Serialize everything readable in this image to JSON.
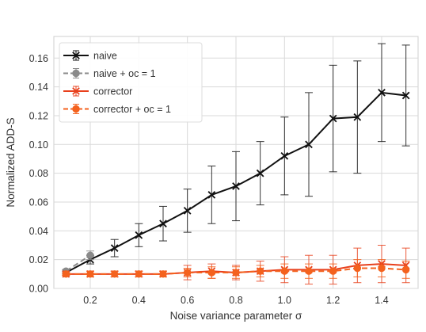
{
  "chart_data": {
    "type": "line",
    "title": "",
    "xlabel": "Noise variance parameter σ",
    "ylabel": "Normalized ADD-S",
    "xlim": [
      0.05,
      1.55
    ],
    "ylim": [
      0.0,
      0.175
    ],
    "x_ticks": [
      0.2,
      0.4,
      0.6,
      0.8,
      1.0,
      1.2,
      1.4
    ],
    "x_tick_labels": [
      "0.2",
      "0.4",
      "0.6",
      "0.8",
      "1.0",
      "1.2",
      "1.4"
    ],
    "y_ticks": [
      0.0,
      0.02,
      0.04,
      0.06,
      0.08,
      0.1,
      0.12,
      0.14,
      0.16
    ],
    "y_tick_labels": [
      "0.00",
      "0.02",
      "0.04",
      "0.06",
      "0.08",
      "0.10",
      "0.12",
      "0.14",
      "0.16"
    ],
    "grid": true,
    "legend_position": "top-left",
    "series": [
      {
        "name": "naive",
        "color": "#111111",
        "marker": "x",
        "dashed": false,
        "x": [
          0.1,
          0.2,
          0.3,
          0.4,
          0.5,
          0.6,
          0.7,
          0.8,
          0.9,
          1.0,
          1.1,
          1.2,
          1.3,
          1.4,
          1.5
        ],
        "values": [
          0.011,
          0.02,
          0.028,
          0.037,
          0.045,
          0.054,
          0.065,
          0.071,
          0.08,
          0.092,
          0.1,
          0.118,
          0.119,
          0.136,
          0.134
        ],
        "err": [
          0.001,
          0.003,
          0.006,
          0.008,
          0.012,
          0.015,
          0.02,
          0.024,
          0.022,
          0.027,
          0.036,
          0.037,
          0.039,
          0.034,
          0.035
        ]
      },
      {
        "name": "naive + oc = 1",
        "color": "#8a8a8a",
        "marker": "o",
        "dashed": true,
        "x": [
          0.1,
          0.2
        ],
        "values": [
          0.012,
          0.023
        ],
        "err": [
          0.001,
          0.003
        ]
      },
      {
        "name": "corrector",
        "color": "#e8401c",
        "marker": "x",
        "dashed": false,
        "x": [
          0.1,
          0.2,
          0.3,
          0.4,
          0.5,
          0.6,
          0.7,
          0.8,
          0.9,
          1.0,
          1.1,
          1.2,
          1.3,
          1.4,
          1.5
        ],
        "values": [
          0.01,
          0.01,
          0.01,
          0.01,
          0.01,
          0.011,
          0.012,
          0.011,
          0.012,
          0.013,
          0.013,
          0.013,
          0.016,
          0.017,
          0.016
        ],
        "err": [
          0.001,
          0.002,
          0.002,
          0.002,
          0.002,
          0.005,
          0.005,
          0.005,
          0.007,
          0.009,
          0.01,
          0.01,
          0.012,
          0.013,
          0.012
        ]
      },
      {
        "name": "corrector + oc = 1",
        "color": "#f4621e",
        "marker": "o",
        "dashed": true,
        "x": [
          0.1,
          0.2,
          0.3,
          0.4,
          0.5,
          0.6,
          0.7,
          0.8,
          0.9,
          1.0,
          1.1,
          1.2,
          1.3,
          1.4,
          1.5
        ],
        "values": [
          0.01,
          0.01,
          0.01,
          0.01,
          0.01,
          0.011,
          0.011,
          0.011,
          0.012,
          0.012,
          0.012,
          0.012,
          0.014,
          0.014,
          0.013
        ],
        "err": [
          0.001,
          0.002,
          0.002,
          0.002,
          0.002,
          0.003,
          0.004,
          0.004,
          0.004,
          0.005,
          0.005,
          0.005,
          0.006,
          0.006,
          0.006
        ]
      }
    ]
  }
}
